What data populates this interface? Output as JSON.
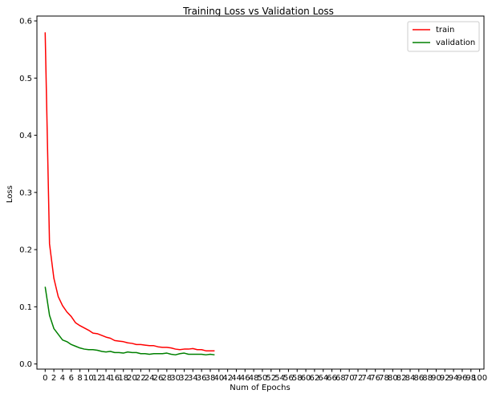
{
  "chart_data": {
    "type": "line",
    "title": "Training Loss vs Validation Loss",
    "xlabel": "Num of Epochs",
    "ylabel": "Loss",
    "xlim": [
      -1.9,
      101
    ],
    "ylim": [
      -0.009,
      0.6085
    ],
    "x_ticks": [
      0,
      2,
      4,
      6,
      8,
      10,
      12,
      14,
      16,
      18,
      20,
      22,
      24,
      26,
      28,
      30,
      32,
      34,
      36,
      38,
      40,
      42,
      44,
      46,
      48,
      50,
      52,
      54,
      56,
      58,
      60,
      62,
      64,
      66,
      68,
      70,
      72,
      74,
      76,
      78,
      80,
      82,
      84,
      86,
      88,
      90,
      92,
      94,
      96,
      98,
      100
    ],
    "y_ticks": [
      0.0,
      0.1,
      0.2,
      0.3,
      0.4,
      0.5,
      0.6
    ],
    "y_tick_labels": [
      "0.0",
      "0.1",
      "0.2",
      "0.3",
      "0.4",
      "0.5",
      "0.6"
    ],
    "grid": false,
    "legend": {
      "position": "top-right"
    },
    "x": [
      0,
      1,
      2,
      3,
      4,
      5,
      6,
      7,
      8,
      9,
      10,
      11,
      12,
      13,
      14,
      15,
      16,
      17,
      18,
      19,
      20,
      21,
      22,
      23,
      24,
      25,
      26,
      27,
      28,
      29,
      30,
      31,
      32,
      33,
      34,
      35,
      36,
      37,
      38,
      39
    ],
    "series": [
      {
        "name": "train",
        "color": "#ff0000",
        "values": [
          0.58,
          0.21,
          0.15,
          0.118,
          0.102,
          0.091,
          0.083,
          0.072,
          0.067,
          0.063,
          0.059,
          0.054,
          0.053,
          0.05,
          0.047,
          0.045,
          0.041,
          0.04,
          0.039,
          0.037,
          0.036,
          0.034,
          0.034,
          0.033,
          0.032,
          0.032,
          0.03,
          0.029,
          0.029,
          0.028,
          0.026,
          0.025,
          0.026,
          0.026,
          0.027,
          0.025,
          0.025,
          0.023,
          0.023,
          0.023
        ]
      },
      {
        "name": "validation",
        "color": "#008000",
        "values": [
          0.135,
          0.085,
          0.062,
          0.052,
          0.042,
          0.039,
          0.034,
          0.031,
          0.028,
          0.026,
          0.025,
          0.025,
          0.024,
          0.022,
          0.021,
          0.022,
          0.02,
          0.02,
          0.019,
          0.021,
          0.02,
          0.02,
          0.018,
          0.018,
          0.017,
          0.018,
          0.018,
          0.018,
          0.019,
          0.017,
          0.016,
          0.018,
          0.019,
          0.017,
          0.017,
          0.017,
          0.017,
          0.016,
          0.017,
          0.016
        ]
      }
    ]
  }
}
